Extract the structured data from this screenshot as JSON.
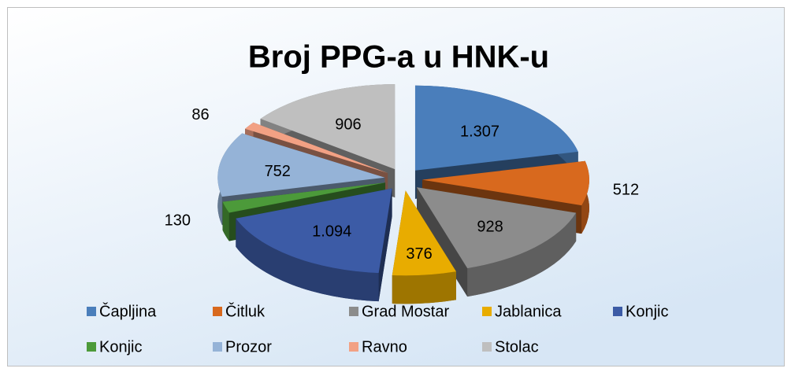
{
  "chart_data": {
    "type": "pie",
    "title": "Broj PPG-a u HNK-u",
    "categories": [
      "Čapljina",
      "Čitluk",
      "Grad Mostar",
      "Jablanica",
      "Konjic",
      "Konjic",
      "Prozor",
      "Ravno",
      "Stolac"
    ],
    "values": [
      1307,
      512,
      928,
      376,
      1094,
      130,
      752,
      86,
      906
    ],
    "value_labels": [
      "1.307",
      "512",
      "928",
      "376",
      "1.094",
      "130",
      "752",
      "86",
      "906"
    ],
    "colors": [
      "#4a7ebb",
      "#d8691e",
      "#8c8c8c",
      "#e8ac00",
      "#3c5ba6",
      "#4c9a3a",
      "#95b3d7",
      "#f2a184",
      "#bfbfbf"
    ],
    "legend": "bottom"
  }
}
